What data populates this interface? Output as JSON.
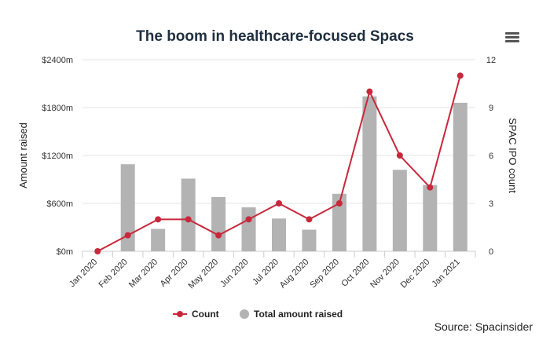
{
  "chart_data": {
    "type": "bar+line",
    "title": "The boom in healthcare-focused Spacs",
    "categories": [
      "Jan 2020",
      "Feb 2020",
      "Mar 2020",
      "Apr 2020",
      "May 2020",
      "Jun 2020",
      "Jul 2020",
      "Aug 2020",
      "Sep 2020",
      "Oct 2020",
      "Nov 2020",
      "Dec 2020",
      "Jan 2021"
    ],
    "series": [
      {
        "name": "Total amount raised",
        "type": "bar",
        "axis": "left",
        "color": "#b3b3b3",
        "values": [
          0,
          1090,
          280,
          910,
          680,
          550,
          410,
          270,
          720,
          1940,
          1020,
          830,
          1860
        ]
      },
      {
        "name": "Count",
        "type": "line",
        "axis": "right",
        "color": "#c8283a",
        "values": [
          0,
          1,
          2,
          2,
          1,
          2,
          3,
          2,
          3,
          10,
          6,
          4,
          11
        ]
      }
    ],
    "y_left": {
      "label": "Amount raised",
      "range": [
        0,
        2400
      ],
      "ticks": [
        "$0m",
        "$600m",
        "$1200m",
        "$1800m",
        "$2400m"
      ]
    },
    "y_right": {
      "label": "SPAC IPO count",
      "range": [
        0,
        12
      ],
      "ticks": [
        "0",
        "3",
        "6",
        "9",
        "12"
      ]
    },
    "grid": true,
    "legend_position": "bottom-center"
  },
  "source": "Source: Spacinsider",
  "menu_icon": "hamburger-menu-icon"
}
